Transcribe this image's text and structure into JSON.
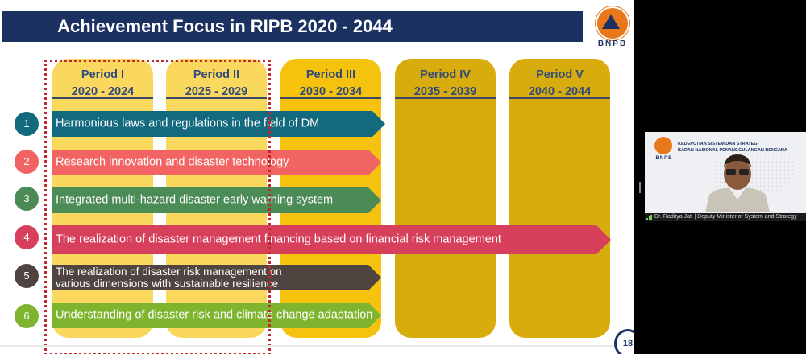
{
  "slide": {
    "title": "Achievement Focus in RIPB 2020 - 2044",
    "logo_text": "BNPB",
    "page_number": "18",
    "colors": {
      "title_bar": "#1a3161",
      "period_light": "#fad85e",
      "period_mid": "#f5c20e",
      "period_dark": "#d9ac0d",
      "dotted_frame": "#c0282e"
    },
    "periods": [
      {
        "label": "Period I",
        "years": "2020 - 2024"
      },
      {
        "label": "Period II",
        "years": "2025 - 2029"
      },
      {
        "label": "Period III",
        "years": "2030 - 2034"
      },
      {
        "label": "Period IV",
        "years": "2035 - 2039"
      },
      {
        "label": "Period V",
        "years": "2040 - 2044"
      }
    ],
    "focus_items": [
      {
        "number": "1",
        "text": "Harmonious laws and regulations in the field of DM",
        "color": "#13697d"
      },
      {
        "number": "2",
        "text": "Research innovation and disaster technology",
        "color": "#f26464"
      },
      {
        "number": "3",
        "text": "Integrated multi-hazard disaster early warning system",
        "color": "#4b8b55"
      },
      {
        "number": "4",
        "text": "The realization of disaster management financing based on financial risk management",
        "color": "#d7405b"
      },
      {
        "number": "5",
        "text": "The realization of disaster risk management on",
        "text2": "various dimensions with sustainable resilience",
        "color": "#4f4440"
      },
      {
        "number": "6",
        "text": "Understanding of disaster risk and climate change adaptation",
        "color": "#7fb52e"
      }
    ]
  },
  "video_tile": {
    "org_line1": "KEDEPUTIAN SISTEM DAN STRATEGI",
    "org_line2": "BADAN NASIONAL PENANGGULANGAN BENCANA",
    "logo_text": "BNPB",
    "speaker_label": "Dr. Raditya Jati | Deputy Minister of System and Strategy"
  }
}
